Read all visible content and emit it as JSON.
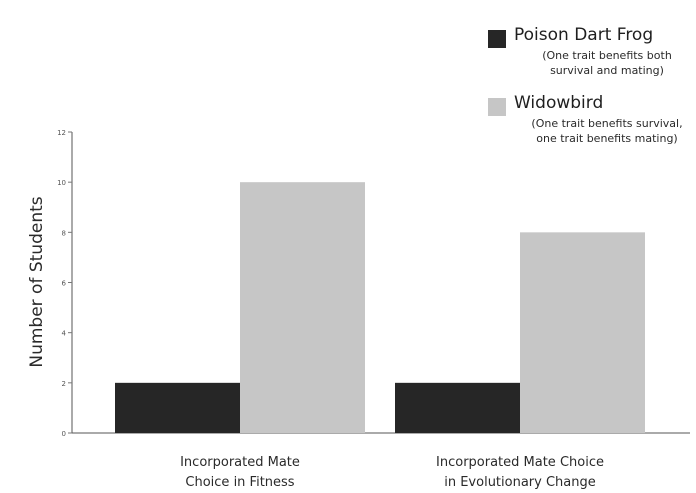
{
  "chart_data": {
    "type": "bar",
    "ylabel": "Number of Students",
    "ylim": [
      0,
      12
    ],
    "y_ticks": [
      "0",
      "2",
      "4",
      "6",
      "8",
      "10",
      "12"
    ],
    "categories": [
      [
        "Incorporated Mate",
        "Choice in Fitness"
      ],
      [
        "Incorporated Mate Choice",
        "in Evolutionary Change"
      ]
    ],
    "series": [
      {
        "name": "Poison Dart Frog",
        "description": [
          "(One trait benefits both",
          "survival and mating)"
        ],
        "color": "#262626",
        "values": [
          2,
          2
        ]
      },
      {
        "name": "Widowbird",
        "description": [
          "(One trait benefits survival,",
          "one trait benefits mating)"
        ],
        "color": "#c6c6c6",
        "values": [
          10,
          8
        ]
      }
    ],
    "legend_position": "top-right",
    "grid": false
  }
}
